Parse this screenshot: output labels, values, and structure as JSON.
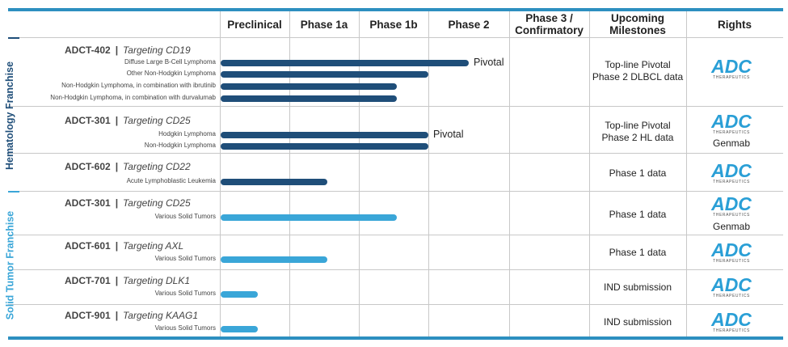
{
  "headers": {
    "preclinical": "Preclinical",
    "phase1a": "Phase 1a",
    "phase1b": "Phase 1b",
    "phase2": "Phase 2",
    "phase3": "Phase 3 /\nConfirmatory",
    "milestones": "Upcoming\nMilestones",
    "rights": "Rights"
  },
  "franchises": {
    "hematology": {
      "label": "Hematology Franchise",
      "color": "#1f4e79"
    },
    "solid": {
      "label": "Solid Tumor Franchise",
      "color": "#3aa6d8"
    }
  },
  "rights_logo": {
    "text": "ADC",
    "sub": "THERAPEUTICS"
  },
  "programs": [
    {
      "name": "ADCT-402",
      "sep": "|",
      "target": "Targeting CD19",
      "milestone": "Top-line Pivotal\nPhase 2 DLBCL data",
      "partner": ""
    },
    {
      "name": "ADCT-301",
      "sep": "|",
      "target": "Targeting CD25",
      "milestone": "Top-line Pivotal\nPhase 2 HL data",
      "partner": "Genmab"
    },
    {
      "name": "ADCT-602",
      "sep": "|",
      "target": "Targeting CD22",
      "milestone": "Phase 1 data",
      "partner": ""
    },
    {
      "name": "ADCT-301",
      "sep": "|",
      "target": "Targeting CD25",
      "milestone": "Phase 1 data",
      "partner": "Genmab"
    },
    {
      "name": "ADCT-601",
      "sep": "|",
      "target": "Targeting AXL",
      "milestone": "Phase 1 data",
      "partner": ""
    },
    {
      "name": "ADCT-701",
      "sep": "|",
      "target": "Targeting DLK1",
      "milestone": "IND submission",
      "partner": ""
    },
    {
      "name": "ADCT-901",
      "sep": "|",
      "target": "Targeting KAAG1",
      "milestone": "IND submission",
      "partner": ""
    }
  ],
  "chart_data": {
    "type": "bar",
    "orientation": "horizontal",
    "stages": [
      "Preclinical",
      "Phase 1a",
      "Phase 1b",
      "Phase 2",
      "Phase 3 / Confirmatory"
    ],
    "categories": [
      "Diffuse Large B-Cell Lymphoma",
      "Other Non-Hodgkin Lymphoma",
      "Non-Hodgkin Lymphoma, in combination with ibrutinib",
      "Non-Hodgkin Lymphoma, in combination with durvalumab",
      "Hodgkin Lymphoma",
      "Non-Hodgkin Lymphoma",
      "Acute Lymphoblastic Leukemia",
      "Various Solid Tumors",
      "Various Solid Tumors",
      "Various Solid Tumors",
      "Various Solid Tumors"
    ],
    "values": [
      3.5,
      3.0,
      2.55,
      2.55,
      3.0,
      3.0,
      1.55,
      2.55,
      1.55,
      0.55,
      0.55
    ],
    "program_index": [
      0,
      0,
      0,
      0,
      1,
      1,
      2,
      3,
      4,
      5,
      6
    ],
    "franchise": [
      "hematology",
      "hematology",
      "hematology",
      "hematology",
      "hematology",
      "hematology",
      "hematology",
      "solid",
      "solid",
      "solid",
      "solid"
    ],
    "bar_labels": [
      "Pivotal",
      "",
      "",
      "",
      "Pivotal",
      "",
      "",
      "",
      "",
      "",
      ""
    ],
    "xlim": [
      0,
      5
    ],
    "unit": "development stage (columns)"
  }
}
